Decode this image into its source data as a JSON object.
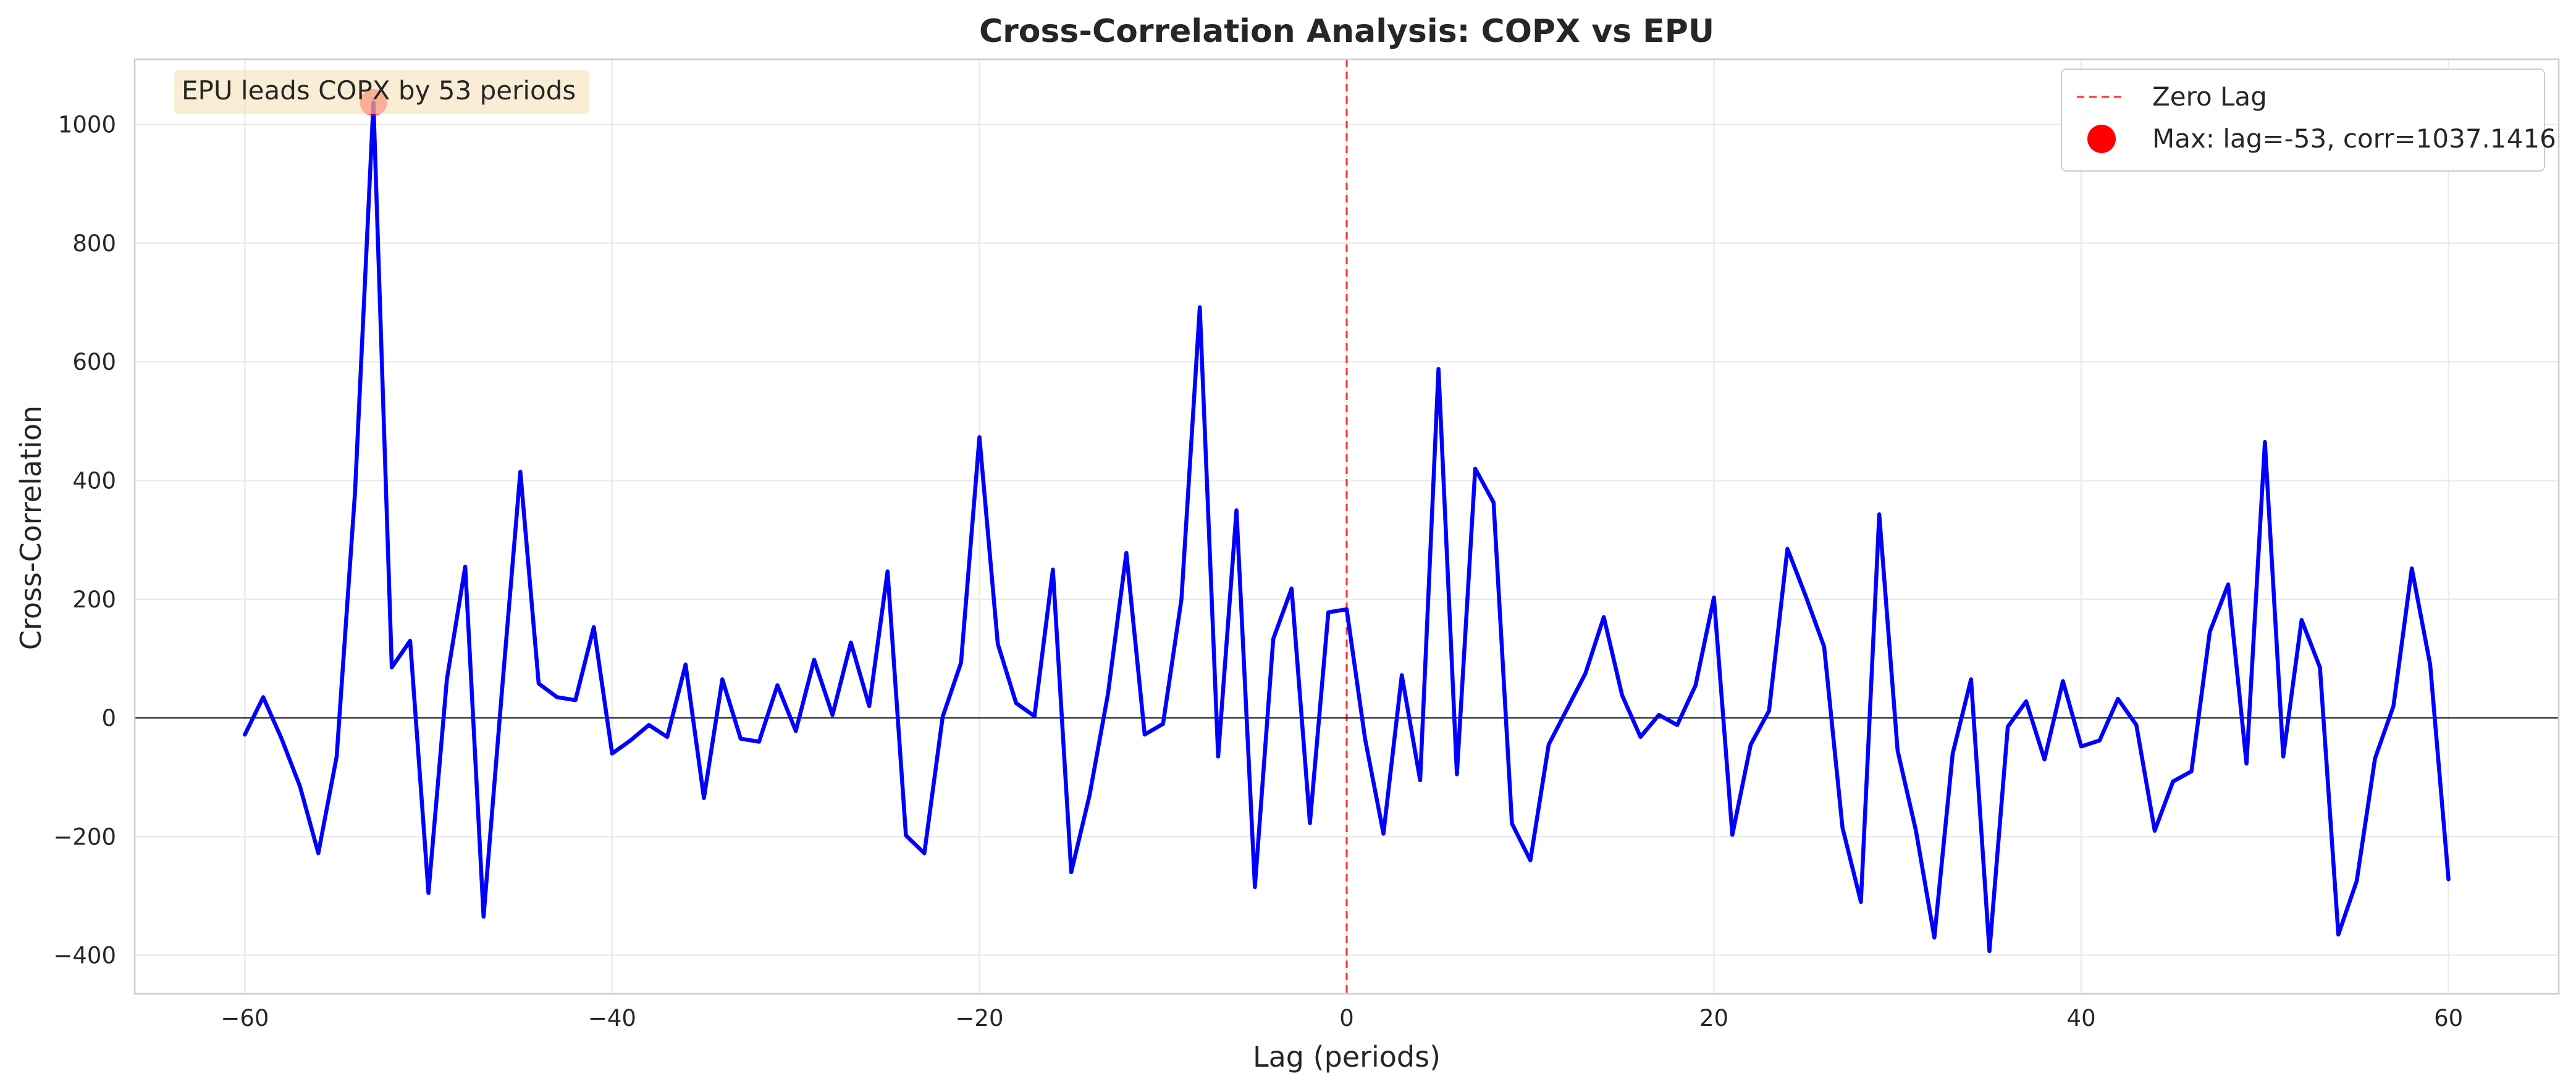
{
  "chart_data": {
    "type": "line",
    "title": "Cross-Correlation Analysis: COPX vs EPU",
    "xlabel": "Lag (periods)",
    "ylabel": "Cross-Correlation",
    "xlim": [
      -66,
      66
    ],
    "ylim": [
      -465,
      1110
    ],
    "xticks": [
      -60,
      -40,
      -20,
      0,
      20,
      40,
      60
    ],
    "xtick_labels": [
      "−60",
      "−40",
      "−20",
      "0",
      "20",
      "40",
      "60"
    ],
    "yticks": [
      -400,
      -200,
      0,
      200,
      400,
      600,
      800,
      1000
    ],
    "ytick_labels": [
      "−400",
      "−200",
      "0",
      "200",
      "400",
      "600",
      "800",
      "1000"
    ],
    "grid": true,
    "legend_position": "top-right",
    "series": [
      {
        "name": "",
        "color": "#0000ff",
        "x": [
          -60,
          -59,
          -58,
          -57,
          -56,
          -55,
          -54,
          -53,
          -52,
          -51,
          -50,
          -49,
          -48,
          -47,
          -46,
          -45,
          -44,
          -43,
          -42,
          -41,
          -40,
          -39,
          -38,
          -37,
          -36,
          -35,
          -34,
          -33,
          -32,
          -31,
          -30,
          -29,
          -28,
          -27,
          -26,
          -25,
          -24,
          -23,
          -22,
          -21,
          -20,
          -19,
          -18,
          -17,
          -16,
          -15,
          -14,
          -13,
          -12,
          -11,
          -10,
          -9,
          -8,
          -7,
          -6,
          -5,
          -4,
          -3,
          -2,
          -1,
          0,
          1,
          2,
          3,
          4,
          5,
          6,
          7,
          8,
          9,
          10,
          11,
          12,
          13,
          14,
          15,
          16,
          17,
          18,
          19,
          20,
          21,
          22,
          23,
          24,
          25,
          26,
          27,
          28,
          29,
          30,
          31,
          32,
          33,
          34,
          35,
          36,
          37,
          38,
          39,
          40,
          41,
          42,
          43,
          44,
          45,
          46,
          47,
          48,
          49,
          50,
          51,
          52,
          53,
          54,
          55,
          56,
          57,
          58,
          59,
          60
        ],
        "y": [
          -28,
          35,
          -35,
          -115,
          -228,
          -65,
          380,
          1037,
          85,
          130,
          -295,
          65,
          255,
          -335,
          45,
          415,
          58,
          35,
          30,
          153,
          -60,
          -38,
          -12,
          -32,
          90,
          -135,
          65,
          -35,
          -40,
          55,
          -22,
          98,
          5,
          127,
          20,
          247,
          -198,
          -228,
          2,
          93,
          473,
          125,
          25,
          3,
          250,
          -260,
          -130,
          40,
          278,
          -28,
          -10,
          200,
          692,
          -65,
          350,
          -285,
          133,
          218,
          -177,
          178,
          183,
          -35,
          -195,
          72,
          -105,
          588,
          -95,
          420,
          363,
          -178,
          -240,
          -45,
          15,
          75,
          170,
          38,
          -32,
          5,
          -12,
          55,
          203,
          -197,
          -45,
          12,
          285,
          205,
          120,
          -185,
          -310,
          343,
          -55,
          -190,
          -370,
          -60,
          65,
          -393,
          -15,
          28,
          -70,
          62,
          -48,
          -38,
          32,
          -12,
          -190,
          -107,
          -90,
          145,
          225,
          -77,
          465,
          -65,
          165,
          85,
          -365,
          -275,
          -68,
          20,
          252,
          90,
          -272
        ]
      }
    ],
    "reference_lines": [
      {
        "axis": "x",
        "value": 0,
        "style": "dashed",
        "color": "#ff0000",
        "label": "Zero Lag"
      },
      {
        "axis": "y",
        "value": 0,
        "style": "solid",
        "color": "#000000"
      }
    ],
    "highlight_point": {
      "x": -53,
      "y": 1037.1416,
      "color": "#ff0000",
      "label": "Max: lag=-53, corr=1037.1416"
    },
    "annotation": {
      "text": "EPU leads COPX by 53 periods",
      "position": "top-left"
    }
  }
}
